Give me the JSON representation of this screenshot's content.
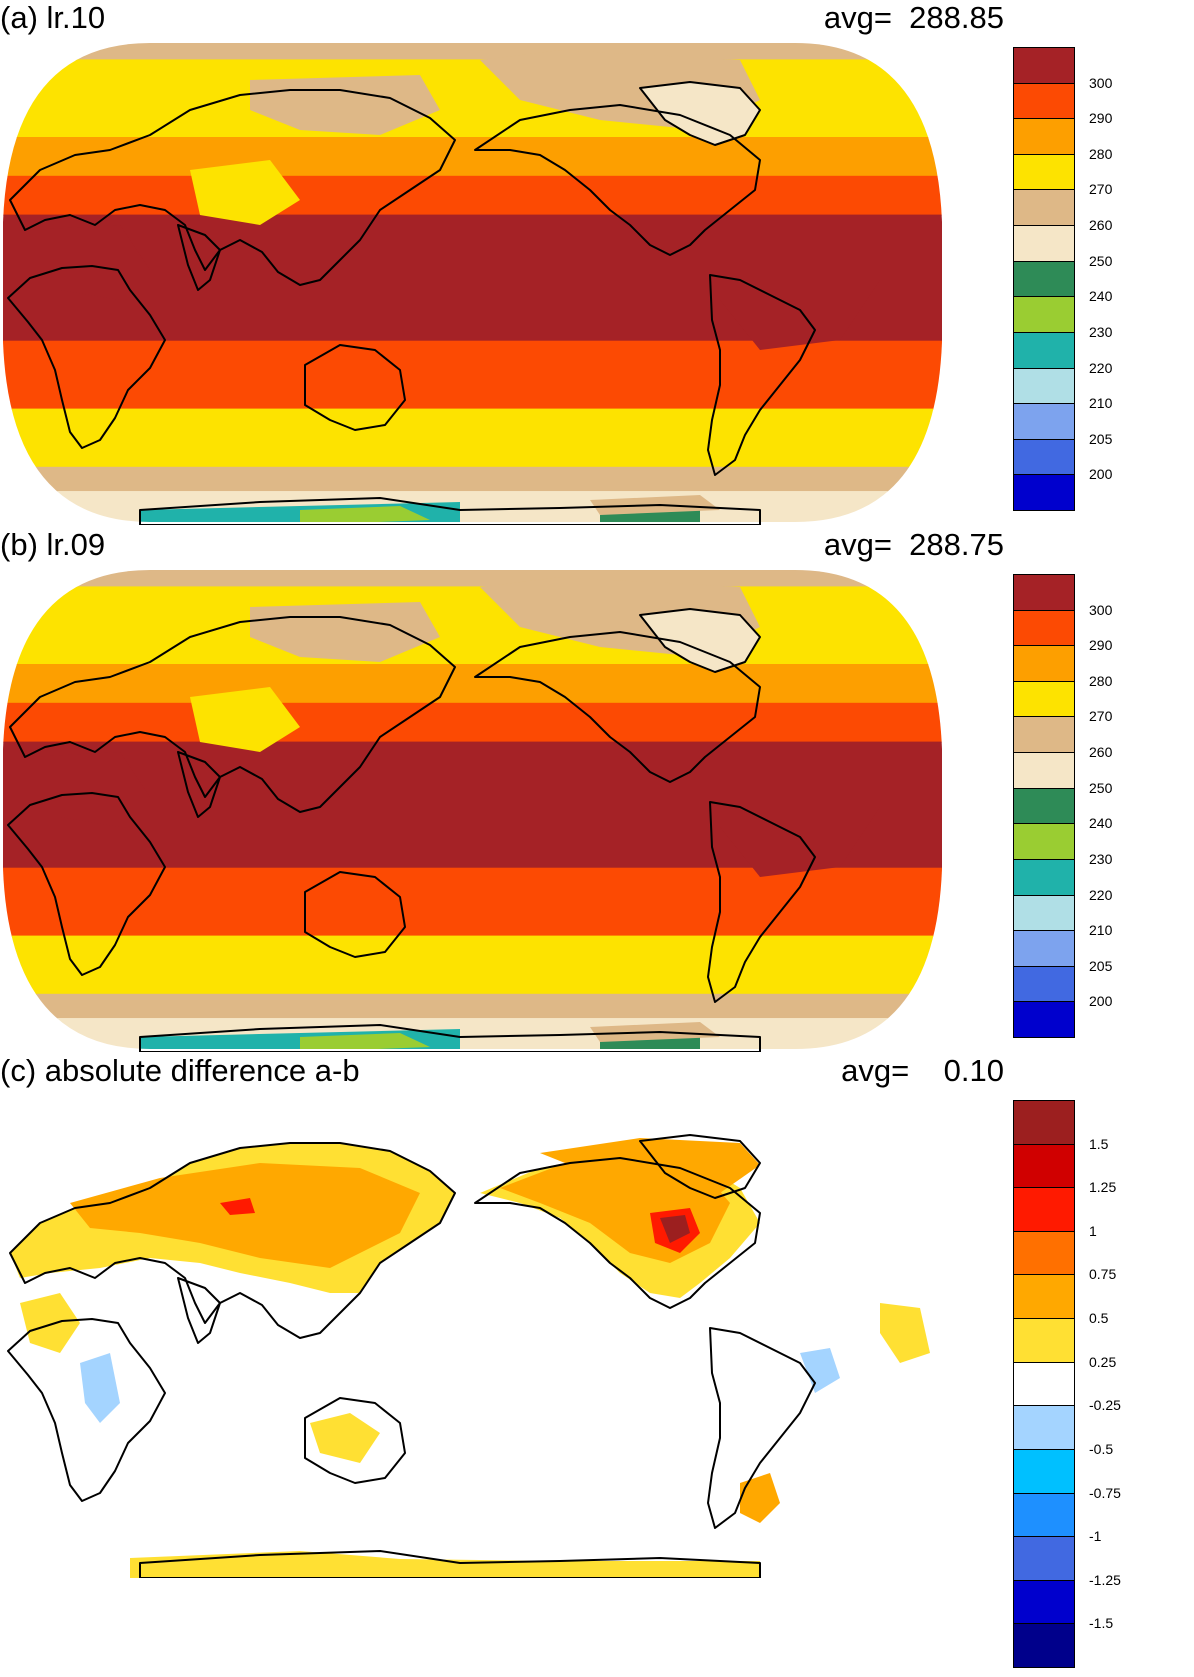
{
  "panels": [
    {
      "id": "a",
      "title": "(a) lr.10",
      "avg_text": "avg=  288.85",
      "map_type": "absolute",
      "colorbar": {
        "labels": [
          "300",
          "290",
          "280",
          "270",
          "260",
          "250",
          "240",
          "230",
          "220",
          "210",
          "205",
          "200"
        ],
        "colors": [
          "#a52226",
          "#fc4a03",
          "#fd9f00",
          "#fde300",
          "#deb887",
          "#f5e6c7",
          "#2e8b57",
          "#9acd32",
          "#20b2aa",
          "#b0dfe6",
          "#7da3ee",
          "#4169e1",
          "#0000cd"
        ]
      }
    },
    {
      "id": "b",
      "title": "(b) lr.09",
      "avg_text": "avg=  288.75",
      "map_type": "absolute",
      "colorbar": {
        "labels": [
          "300",
          "290",
          "280",
          "270",
          "260",
          "250",
          "240",
          "230",
          "220",
          "210",
          "205",
          "200"
        ],
        "colors": [
          "#a52226",
          "#fc4a03",
          "#fd9f00",
          "#fde300",
          "#deb887",
          "#f5e6c7",
          "#2e8b57",
          "#9acd32",
          "#20b2aa",
          "#b0dfe6",
          "#7da3ee",
          "#4169e1",
          "#0000cd"
        ]
      }
    },
    {
      "id": "c",
      "title": "(c) absolute difference a-b",
      "avg_text": "avg=    0.10",
      "map_type": "difference",
      "colorbar": {
        "labels": [
          "1.5",
          "1.25",
          "1",
          "0.75",
          "0.5",
          "0.25",
          "-0.25",
          "-0.5",
          "-0.75",
          "-1",
          "-1.25",
          "-1.5"
        ],
        "colors": [
          "#9c1f1f",
          "#d00000",
          "#ff1a00",
          "#ff7000",
          "#ffa800",
          "#ffe033",
          "#ffffff",
          "#a4d4ff",
          "#00c0ff",
          "#1e90ff",
          "#4169e1",
          "#0000cd",
          "#00008b"
        ]
      }
    }
  ]
}
